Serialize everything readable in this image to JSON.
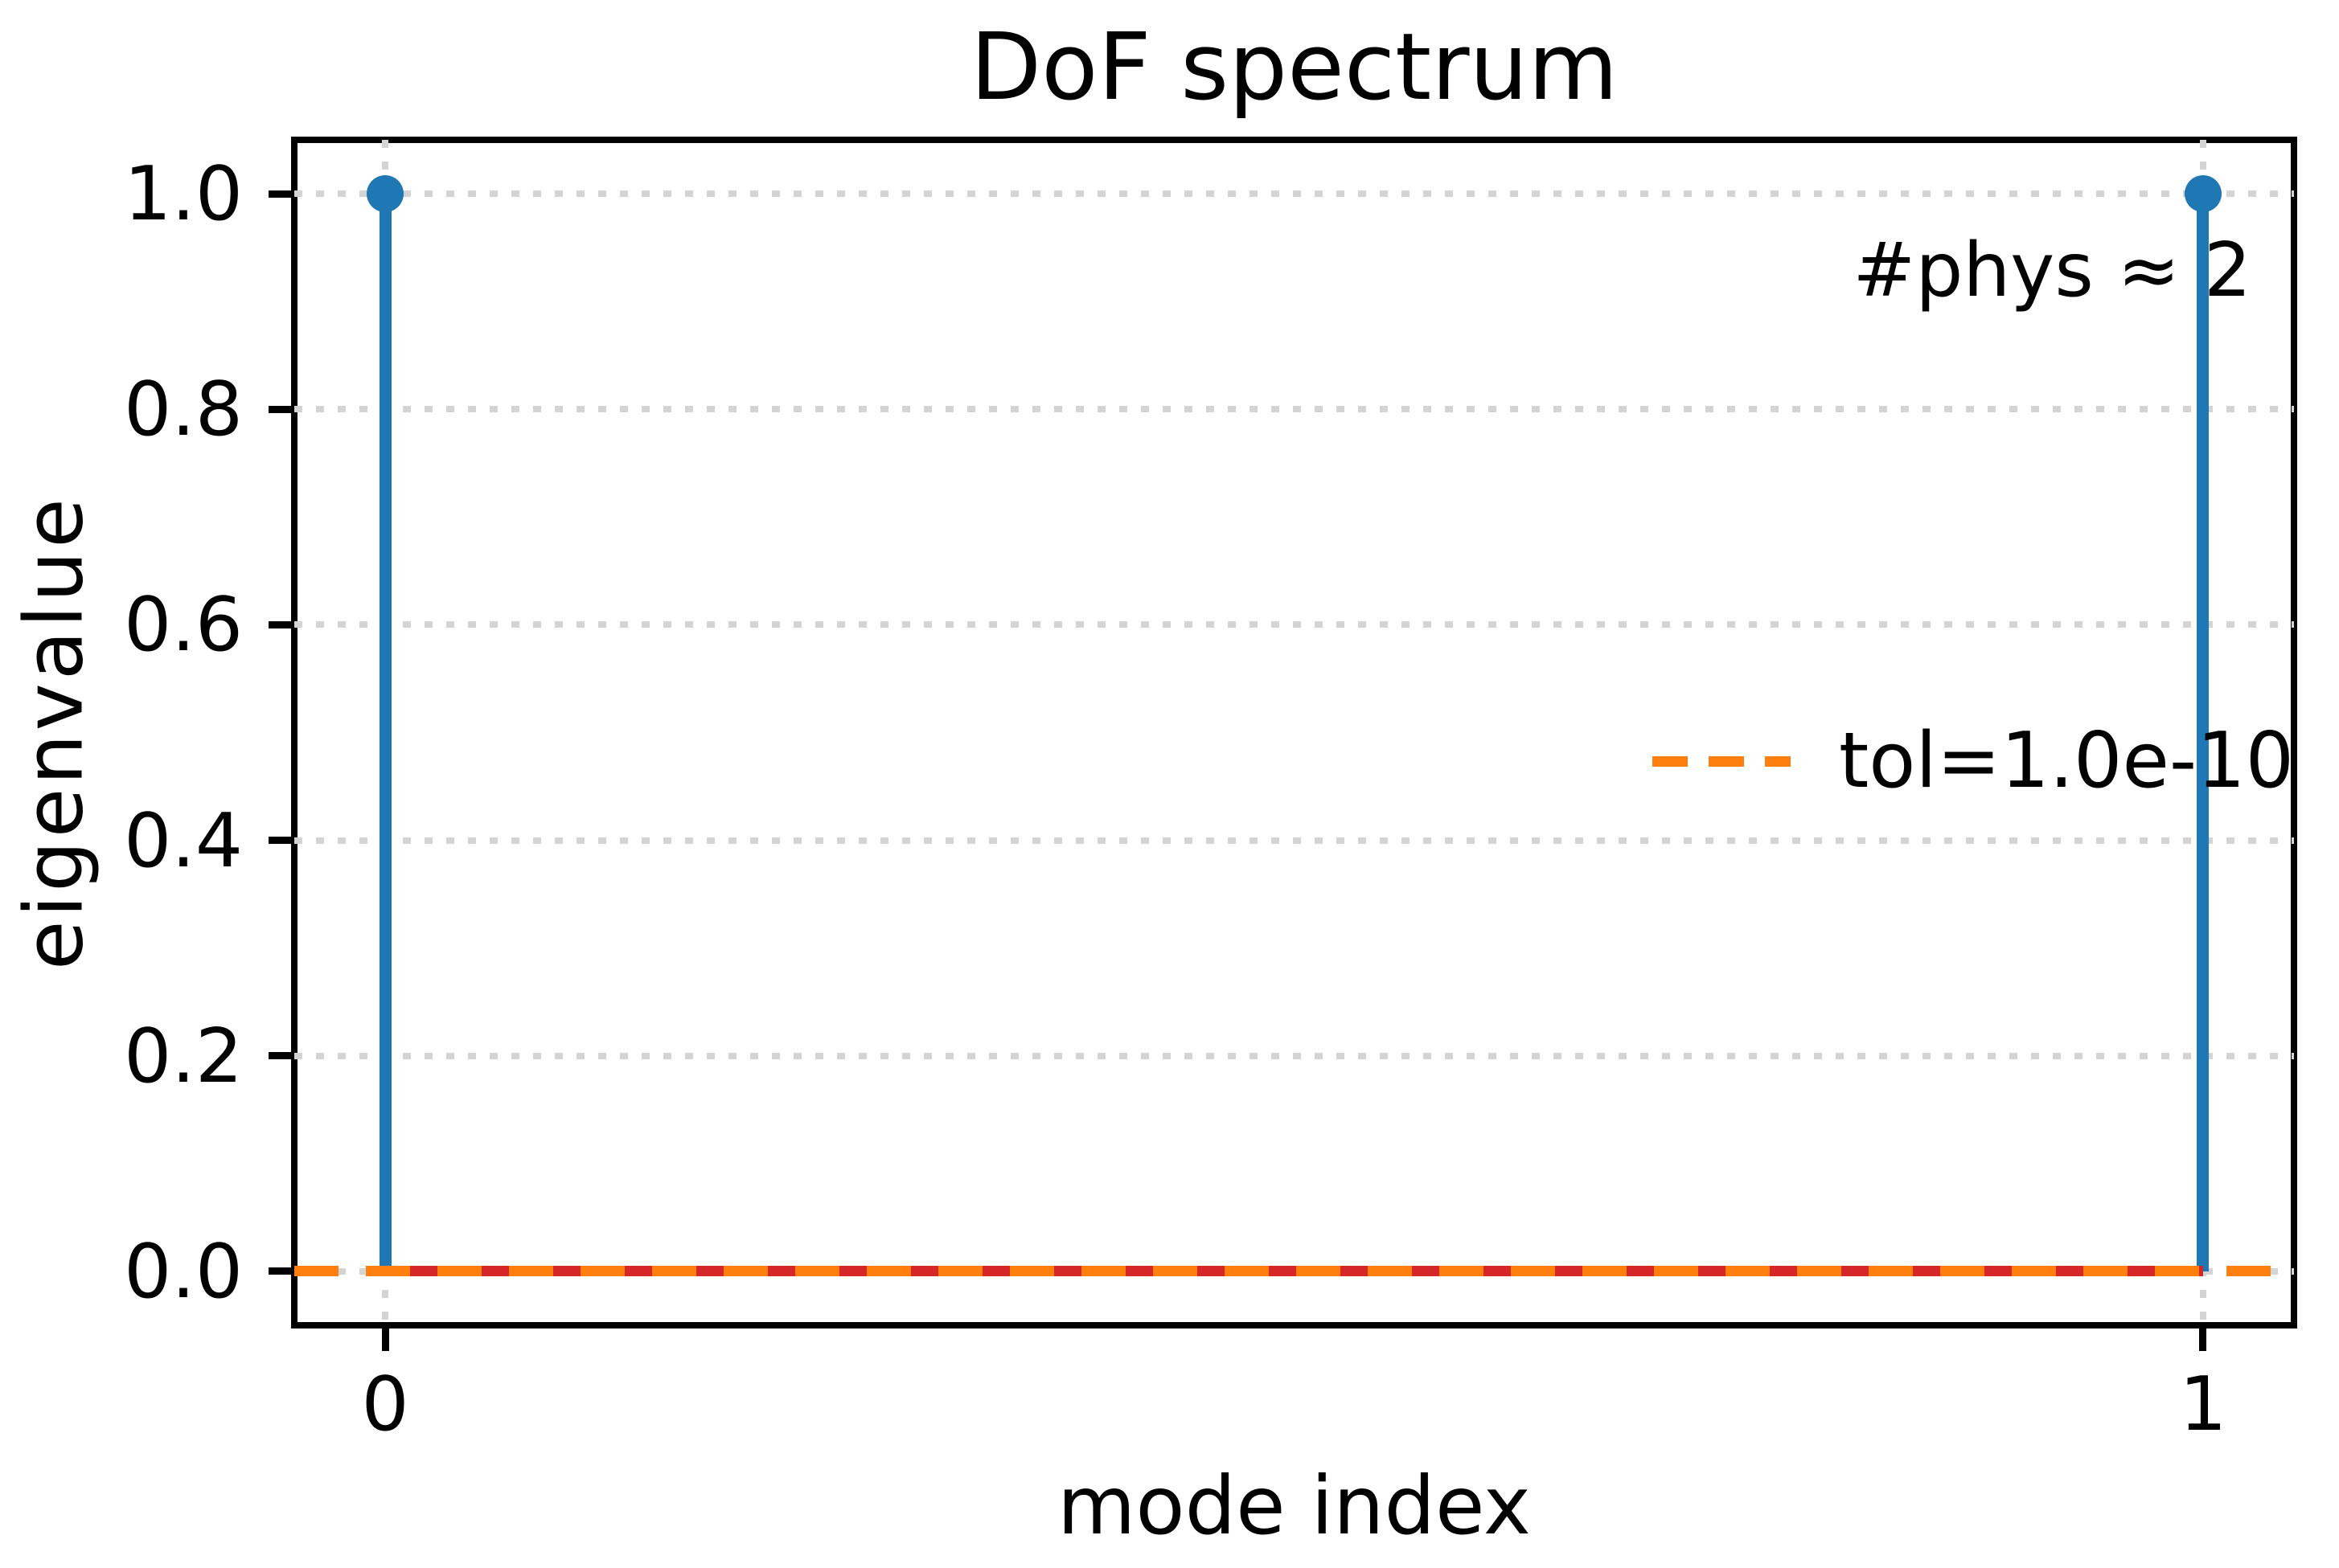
{
  "chart_data": {
    "type": "stem",
    "title": "DoF spectrum",
    "xlabel": "mode index",
    "ylabel": "eigenvalue",
    "x": [
      0,
      1
    ],
    "values": [
      1.0,
      1.0
    ],
    "baseline_value": 0.0,
    "tolerance_value": 0.0,
    "xlim": [
      -0.05,
      1.05
    ],
    "ylim": [
      -0.05,
      1.05
    ],
    "xticks": [
      0,
      1
    ],
    "xtick_labels": [
      "0",
      "1"
    ],
    "yticks": [
      0.0,
      0.2,
      0.4,
      0.6,
      0.8,
      1.0
    ],
    "ytick_labels": [
      "0.0",
      "0.2",
      "0.4",
      "0.6",
      "0.8",
      "1.0"
    ],
    "grid": true,
    "legend": {
      "position": "center right",
      "entries": [
        {
          "label": "tol=1.0e-10",
          "color": "#ff7f0e",
          "style": "dashed"
        }
      ]
    },
    "annotation": {
      "text": "#phys ≈ 2"
    },
    "colors": {
      "stem": "#1f77b4",
      "marker": "#1f77b4",
      "baseline": "#d62728",
      "tolerance_line": "#ff7f0e",
      "grid": "#d4d4d4",
      "text": "#000000",
      "spine": "#000000"
    }
  }
}
